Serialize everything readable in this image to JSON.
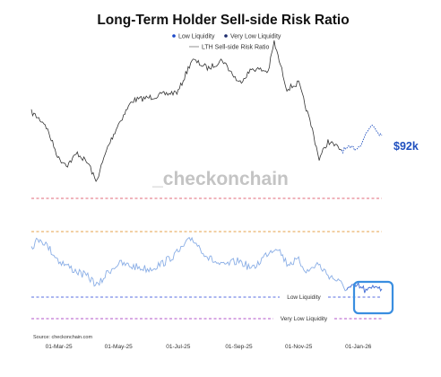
{
  "chart_data": {
    "type": "line",
    "title": "Long-Term Holder Sell-side Risk Ratio",
    "watermark": "_checkonchain",
    "source": "Source: checkonchain.com",
    "legend": {
      "placement": "top-center",
      "entries": [
        {
          "label": "Low Liquidity",
          "color": "#1a47c8",
          "kind": "dot"
        },
        {
          "label": "Very Low Liquidity",
          "color": "#1b2a6b",
          "kind": "dot"
        },
        {
          "label": "LTH Sell-side Risk Ratio",
          "color": "#777777",
          "kind": "line"
        }
      ]
    },
    "x_ticks": [
      "01-Mar-25",
      "01-May-25",
      "01-Jul-25",
      "01-Sep-25",
      "01-Nov-25",
      "01-Jan-26"
    ],
    "grid": false,
    "price_label": "$92k",
    "colors": {
      "price": "#333333",
      "price_recent": "#1f4fbf",
      "ratio": "#8aaee6",
      "ratio_recent": "#4a74d8",
      "low_liquidity": "#5a6fe0",
      "very_low_liquidity": "#b056c8",
      "upper_red": "#e06a78",
      "upper_orange": "#e6a24a",
      "highlight": "#3a8ee0"
    },
    "series": [
      {
        "name": "Price",
        "unit": "USD thousands",
        "x": [
          "2025-02-01",
          "2025-02-15",
          "2025-03-01",
          "2025-03-10",
          "2025-03-20",
          "2025-04-01",
          "2025-04-08",
          "2025-04-20",
          "2025-05-01",
          "2025-05-15",
          "2025-06-01",
          "2025-06-15",
          "2025-07-01",
          "2025-07-15",
          "2025-08-01",
          "2025-08-15",
          "2025-09-01",
          "2025-09-15",
          "2025-10-01",
          "2025-10-07",
          "2025-10-20",
          "2025-11-01",
          "2025-11-15",
          "2025-11-22",
          "2025-12-01",
          "2025-12-15",
          "2026-01-01",
          "2026-01-15",
          "2026-01-25"
        ],
        "values": [
          100,
          96,
          84,
          82,
          86,
          82,
          76,
          88,
          96,
          104,
          105,
          106,
          107,
          118,
          115,
          118,
          110,
          115,
          114,
          124,
          108,
          110,
          94,
          84,
          90,
          87,
          88,
          96,
          92
        ]
      },
      {
        "name": "LTH Sell-side Risk Ratio",
        "x": [
          "2025-02-01",
          "2025-02-10",
          "2025-02-20",
          "2025-03-01",
          "2025-03-15",
          "2025-04-01",
          "2025-04-10",
          "2025-04-20",
          "2025-05-01",
          "2025-05-15",
          "2025-06-01",
          "2025-06-15",
          "2025-07-01",
          "2025-07-15",
          "2025-08-01",
          "2025-08-15",
          "2025-09-01",
          "2025-09-15",
          "2025-10-01",
          "2025-10-10",
          "2025-10-20",
          "2025-11-01",
          "2025-11-10",
          "2025-11-20",
          "2025-12-01",
          "2025-12-10",
          "2025-12-20",
          "2026-01-01",
          "2026-01-10",
          "2026-01-20",
          "2026-01-25"
        ],
        "values": [
          0.8,
          0.95,
          0.75,
          0.55,
          0.4,
          0.25,
          0.1,
          0.35,
          0.5,
          0.45,
          0.4,
          0.5,
          0.7,
          0.95,
          0.6,
          0.45,
          0.55,
          0.4,
          0.7,
          0.8,
          0.5,
          0.55,
          0.35,
          0.5,
          0.3,
          0.2,
          0.05,
          0.1,
          0.0,
          0.12,
          0.05
        ]
      }
    ],
    "reference_lines": [
      {
        "label": "",
        "panel": "price",
        "color": "#e06a78"
      },
      {
        "label": "",
        "panel": "ratio",
        "color": "#e6a24a"
      },
      {
        "label": "Low Liquidity",
        "panel": "ratio",
        "color": "#5a6fe0"
      },
      {
        "label": "Very Low Liquidity",
        "panel": "ratio",
        "color": "#b056c8"
      }
    ]
  }
}
